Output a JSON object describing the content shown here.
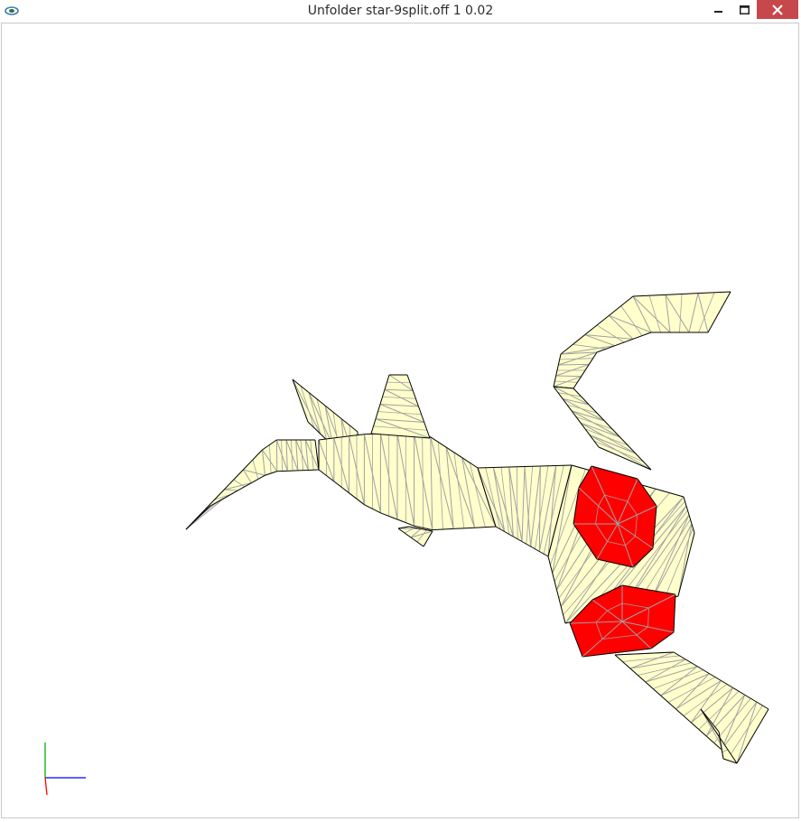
{
  "window": {
    "title": "Unfolder star-9split.off 1 0.02",
    "controls": {
      "minimize": "minimize",
      "maximize": "maximize",
      "close": "close"
    }
  },
  "colors": {
    "face_fill": "#ffffcc",
    "highlight_fill": "#ff0000",
    "cut_edge": "#000000",
    "fold_edge": "#a0a0a0",
    "axis_x": "#0000ff",
    "axis_y": "#00b000",
    "axis_z": "#ff0000",
    "close_button": "#c7484b"
  },
  "icons": [
    "app-icon",
    "minimize-icon",
    "maximize-icon",
    "close-icon"
  ]
}
